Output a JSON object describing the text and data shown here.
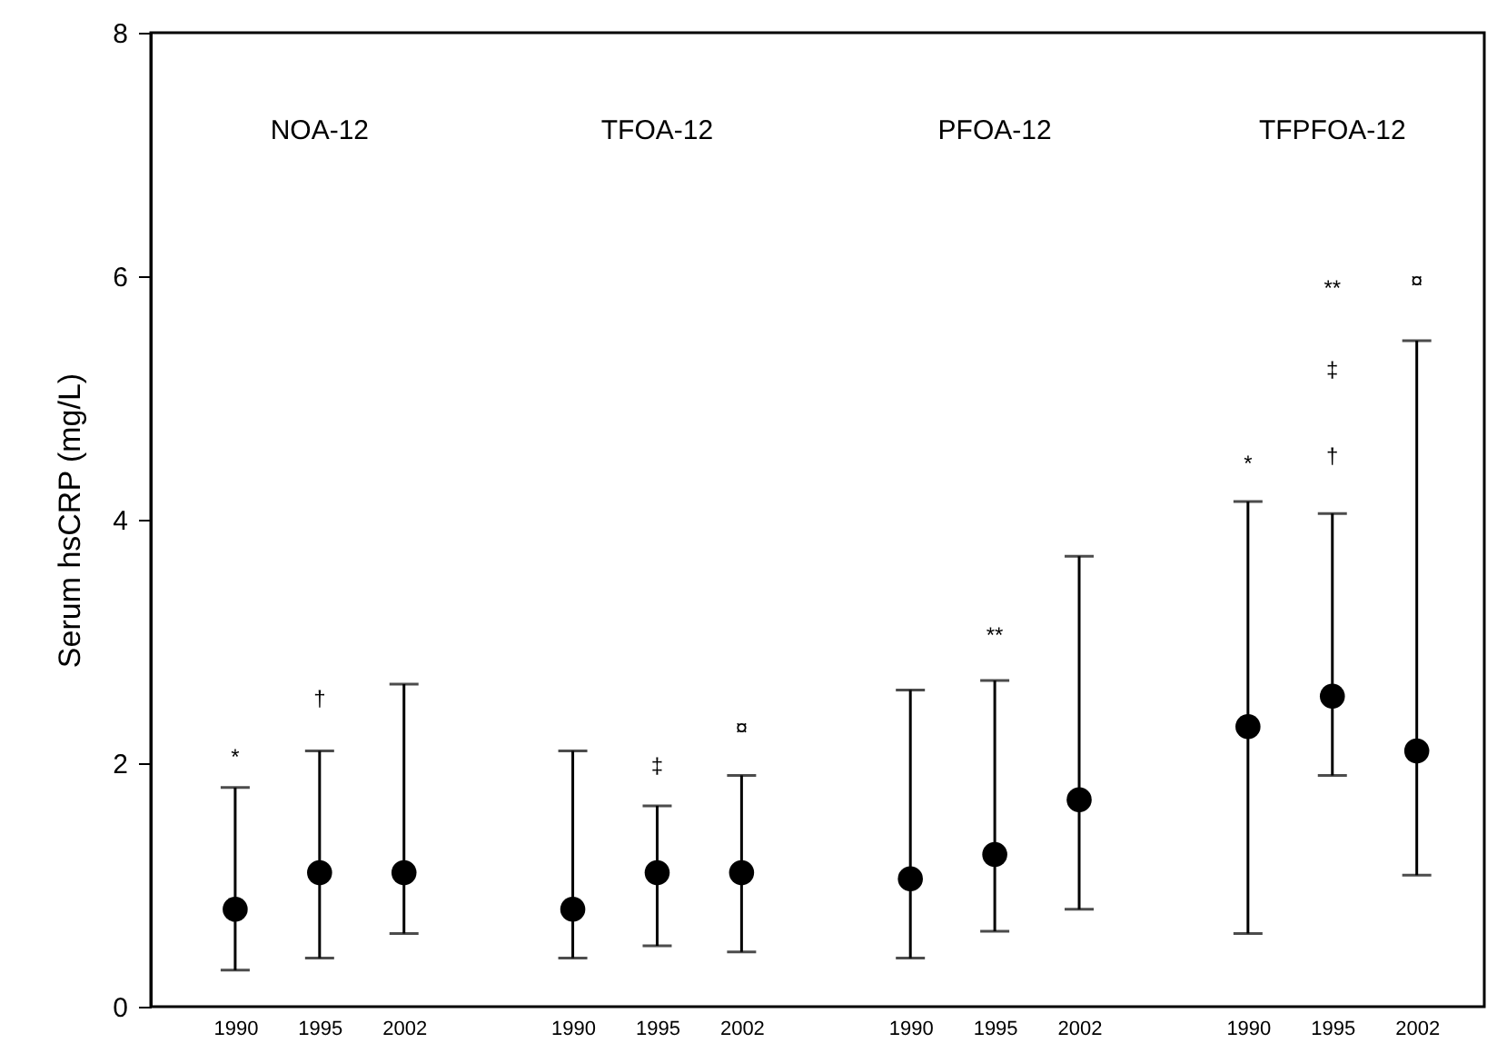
{
  "chart_data": {
    "type": "scatter",
    "ylabel": "Serum hsCRP  (mg/L)",
    "categories": [
      "1990",
      "1995",
      "2002",
      null,
      "1990",
      "1995",
      "2002",
      null,
      "1990",
      "1995",
      "2002",
      null,
      "1990",
      "1995",
      "2002"
    ],
    "series": [
      {
        "color": "#000000",
        "values": [
          0.8,
          1.1,
          1.1,
          null,
          0.8,
          1.1,
          1.1,
          null,
          1.05,
          1.25,
          1.7,
          null,
          2.3,
          2.55,
          2.1
        ],
        "errors": [
          [
            0.3,
            1.8
          ],
          [
            0.4,
            2.1
          ],
          [
            0.6,
            2.65
          ],
          null,
          [
            0.4,
            2.1
          ],
          [
            0.5,
            1.65
          ],
          [
            0.45,
            1.9
          ],
          null,
          [
            0.4,
            2.6
          ],
          [
            0.62,
            2.68
          ],
          [
            0.8,
            3.7
          ],
          null,
          [
            0.6,
            4.15
          ],
          [
            1.9,
            4.05
          ],
          [
            1.08,
            5.47
          ]
        ]
      }
    ],
    "ylim": [
      0,
      8
    ],
    "yticks": [
      0,
      2,
      4,
      6,
      8
    ],
    "grid": false,
    "marker": "circle",
    "annotations": [
      "NOA-12",
      "TFOA-12",
      "PFOA-12",
      "TFPFOA-12",
      "*",
      "†",
      "‡",
      "¤",
      "**",
      "*",
      "†",
      "‡",
      "**",
      "¤"
    ]
  }
}
